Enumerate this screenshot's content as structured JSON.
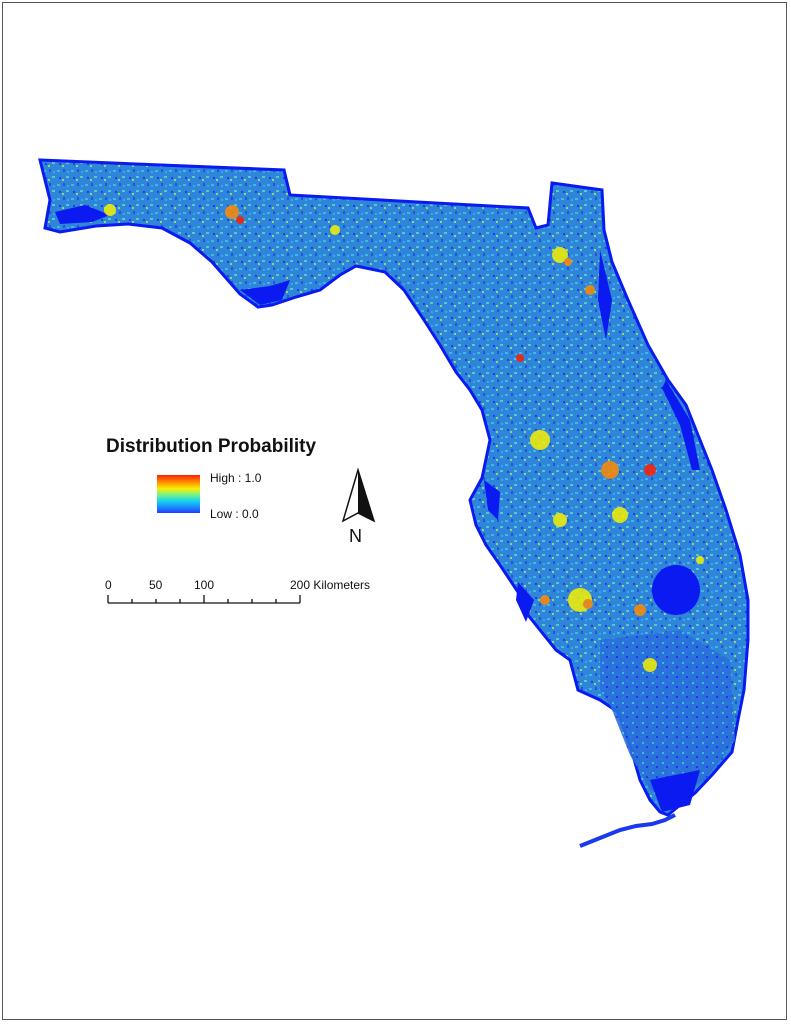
{
  "legend": {
    "title": "Distribution Probability",
    "high_label": "High : 1.0",
    "low_label": "Low : 0.0",
    "colors": [
      "#ff1e00",
      "#ff8a00",
      "#f6f000",
      "#7cf08a",
      "#13d8e8",
      "#1e8cff",
      "#1d3dff"
    ]
  },
  "north_arrow": {
    "label": "N"
  },
  "scale_bar": {
    "labels": [
      "0",
      "50",
      "100",
      "200 Kilometers"
    ],
    "unit": "Kilometers"
  },
  "map": {
    "region_colors": {
      "land_base": "#2b7fd6",
      "water_body": "#0a1af0",
      "wetland": "#3a55e8"
    }
  }
}
